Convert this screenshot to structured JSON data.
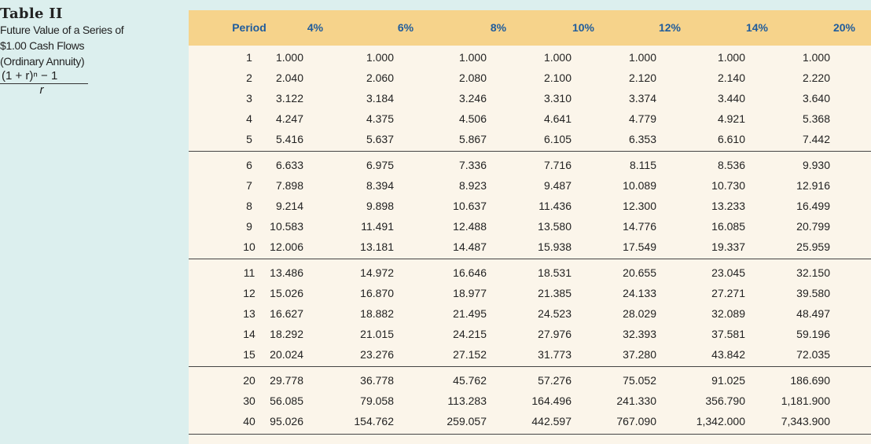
{
  "caption": {
    "title": "Table II",
    "subtitle_lines": [
      "Future Value of a Series of",
      "$1.00 Cash Flows",
      "(Ordinary Annuity)"
    ],
    "formula_numerator": "(1 + r)ⁿ − 1",
    "formula_denominator": "r"
  },
  "table": {
    "headers": [
      "Period",
      "4%",
      "6%",
      "8%",
      "10%",
      "12%",
      "14%",
      "20%"
    ],
    "groups": [
      [
        [
          "1",
          "1.000",
          "1.000",
          "1.000",
          "1.000",
          "1.000",
          "1.000",
          "1.000"
        ],
        [
          "2",
          "2.040",
          "2.060",
          "2.080",
          "2.100",
          "2.120",
          "2.140",
          "2.220"
        ],
        [
          "3",
          "3.122",
          "3.184",
          "3.246",
          "3.310",
          "3.374",
          "3.440",
          "3.640"
        ],
        [
          "4",
          "4.247",
          "4.375",
          "4.506",
          "4.641",
          "4.779",
          "4.921",
          "5.368"
        ],
        [
          "5",
          "5.416",
          "5.637",
          "5.867",
          "6.105",
          "6.353",
          "6.610",
          "7.442"
        ]
      ],
      [
        [
          "6",
          "6.633",
          "6.975",
          "7.336",
          "7.716",
          "8.115",
          "8.536",
          "9.930"
        ],
        [
          "7",
          "7.898",
          "8.394",
          "8.923",
          "9.487",
          "10.089",
          "10.730",
          "12.916"
        ],
        [
          "8",
          "9.214",
          "9.898",
          "10.637",
          "11.436",
          "12.300",
          "13.233",
          "16.499"
        ],
        [
          "9",
          "10.583",
          "11.491",
          "12.488",
          "13.580",
          "14.776",
          "16.085",
          "20.799"
        ],
        [
          "10",
          "12.006",
          "13.181",
          "14.487",
          "15.938",
          "17.549",
          "19.337",
          "25.959"
        ]
      ],
      [
        [
          "11",
          "13.486",
          "14.972",
          "16.646",
          "18.531",
          "20.655",
          "23.045",
          "32.150"
        ],
        [
          "12",
          "15.026",
          "16.870",
          "18.977",
          "21.385",
          "24.133",
          "27.271",
          "39.580"
        ],
        [
          "13",
          "16.627",
          "18.882",
          "21.495",
          "24.523",
          "28.029",
          "32.089",
          "48.497"
        ],
        [
          "14",
          "18.292",
          "21.015",
          "24.215",
          "27.976",
          "32.393",
          "37.581",
          "59.196"
        ],
        [
          "15",
          "20.024",
          "23.276",
          "27.152",
          "31.773",
          "37.280",
          "43.842",
          "72.035"
        ]
      ],
      [
        [
          "20",
          "29.778",
          "36.778",
          "45.762",
          "57.276",
          "75.052",
          "91.025",
          "186.690"
        ],
        [
          "30",
          "56.085",
          "79.058",
          "113.283",
          "164.496",
          "241.330",
          "356.790",
          "1,181.900"
        ],
        [
          "40",
          "95.026",
          "154.762",
          "259.057",
          "442.597",
          "767.090",
          "1,342.000",
          "7,343.900"
        ]
      ]
    ]
  }
}
